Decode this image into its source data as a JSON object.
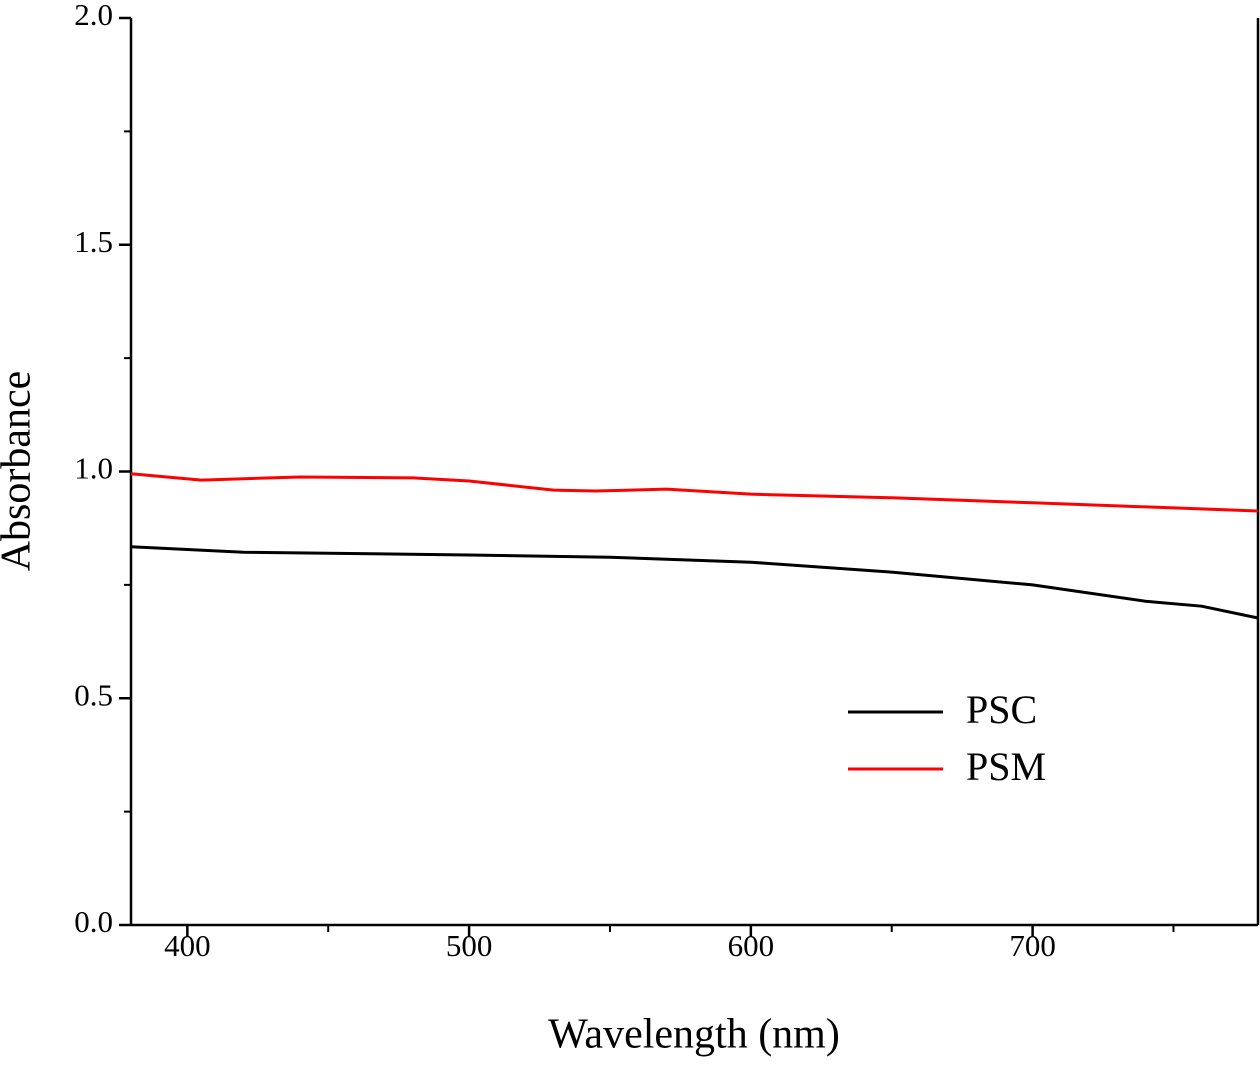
{
  "chart_data": {
    "type": "line",
    "x_label": "Wavelength (nm)",
    "y_label": "Absorbance",
    "series": [
      {
        "name": "PSC",
        "color": "#000000",
        "x": [
          380,
          420,
          500,
          550,
          600,
          650,
          700,
          740,
          760,
          780
        ],
        "values": [
          0.834,
          0.822,
          0.816,
          0.811,
          0.8,
          0.778,
          0.75,
          0.714,
          0.703,
          0.677
        ]
      },
      {
        "name": "PSM",
        "color": "#ff0000",
        "x": [
          380,
          405,
          440,
          480,
          500,
          530,
          545,
          570,
          600,
          650,
          700,
          780
        ],
        "values": [
          0.995,
          0.981,
          0.988,
          0.986,
          0.979,
          0.959,
          0.957,
          0.961,
          0.95,
          0.942,
          0.931,
          0.913
        ]
      }
    ],
    "xlim": [
      380,
      780
    ],
    "xticks": [
      400,
      500,
      600,
      700
    ],
    "xminorticks": [
      450,
      550,
      650,
      750
    ],
    "ylim": [
      0,
      2
    ],
    "yticks": [
      {
        "value": 0,
        "label": "0.0"
      },
      0.5,
      {
        "value": 1,
        "label": "1.0"
      },
      1.5,
      {
        "value": 2,
        "label": "2.0"
      }
    ],
    "yminorticks": [
      0.25,
      0.75,
      1.25,
      1.75
    ],
    "grid": false,
    "legend": "lower right"
  }
}
